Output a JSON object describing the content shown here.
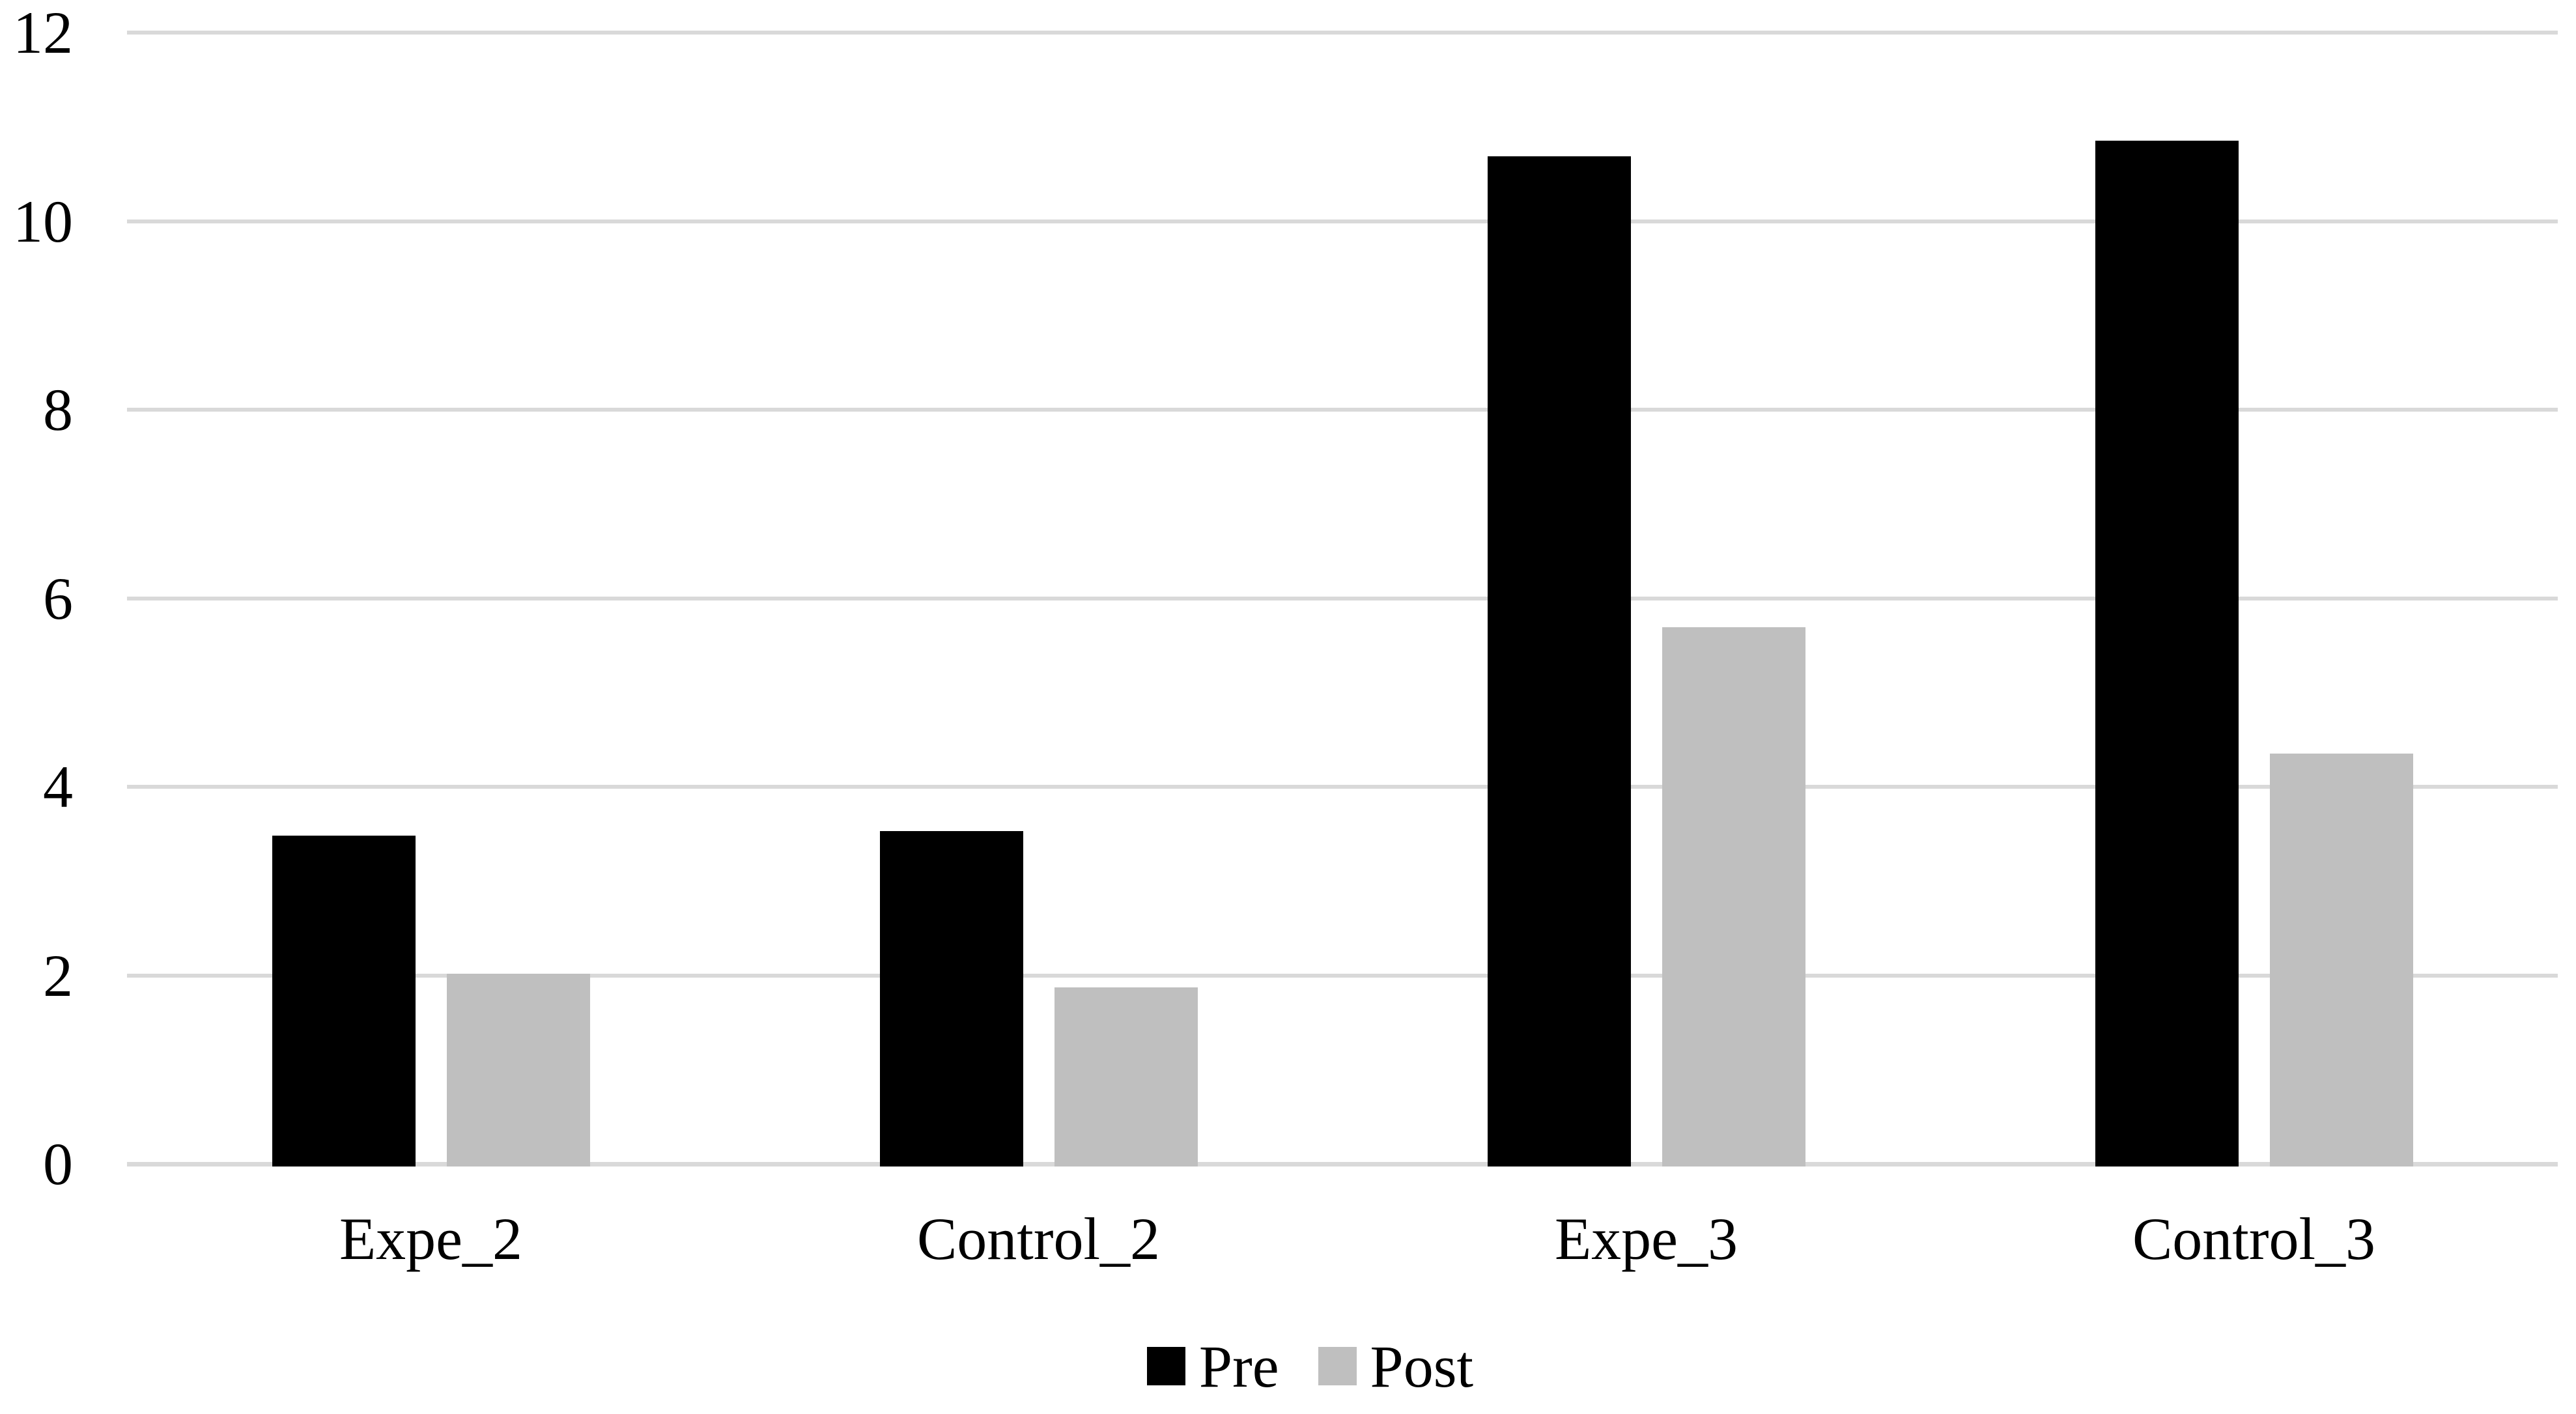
{
  "figure": {
    "background": "#ffffff",
    "text_color": "#000000"
  },
  "chart_data": {
    "type": "bar",
    "title": "",
    "xlabel": "",
    "ylabel": "",
    "categories": [
      "Expe_2",
      "Control_2",
      "Expe_3",
      "Control_3"
    ],
    "series": [
      {
        "name": "Pre",
        "color": "#000000",
        "values": [
          3.48,
          3.53,
          10.69,
          10.85
        ]
      },
      {
        "name": "Post",
        "color": "#bfbfbf",
        "values": [
          2.02,
          1.87,
          5.69,
          4.35
        ]
      }
    ],
    "ylim": [
      0,
      12
    ],
    "yticks": [
      0,
      2,
      4,
      6,
      8,
      10,
      12
    ],
    "grid": true,
    "gridline_color": "#d9d9d9",
    "axis_line_color": "#d9d9d9",
    "legend": [
      "Pre",
      "Post"
    ],
    "legend_position": "bottom"
  }
}
